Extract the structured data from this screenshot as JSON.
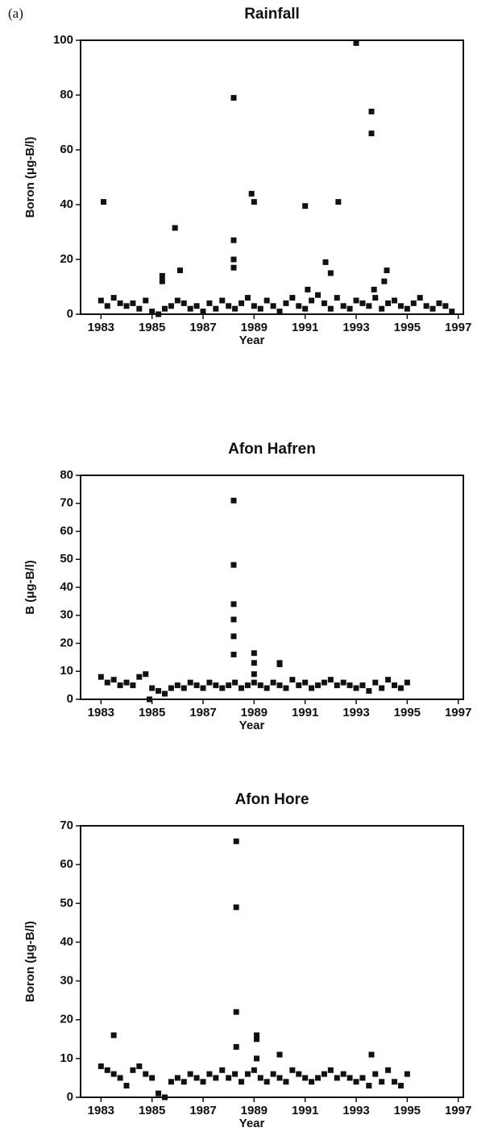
{
  "panel_label": "(a)",
  "chart_data": [
    {
      "type": "scatter",
      "title": "Rainfall",
      "x_label": "Year",
      "y_label": "Boron (μg-B/l)",
      "color": "#111111",
      "xlim": [
        1982.2,
        1997.2
      ],
      "xticks": [
        1983,
        1985,
        1987,
        1989,
        1991,
        1993,
        1995,
        1997
      ],
      "ylim": [
        0,
        100
      ],
      "yticks": [
        0,
        20,
        40,
        60,
        80,
        100
      ],
      "x": [
        1983,
        1983.25,
        1983.5,
        1983.75,
        1984,
        1984.25,
        1984.5,
        1984.75,
        1985,
        1985.25,
        1985.5,
        1985.75,
        1986,
        1986.25,
        1986.5,
        1986.75,
        1987,
        1987.25,
        1987.5,
        1987.75,
        1988,
        1988.25,
        1988.5,
        1988.75,
        1989,
        1989.25,
        1989.5,
        1989.75,
        1990,
        1990.25,
        1990.5,
        1990.75,
        1991,
        1991.25,
        1991.5,
        1991.75,
        1992,
        1992.25,
        1992.5,
        1992.75,
        1993,
        1993.25,
        1993.5,
        1993.75,
        1994,
        1994.25,
        1994.5,
        1994.75,
        1995,
        1995.25,
        1995.5,
        1995.75,
        1996,
        1996.25,
        1996.5,
        1996.75,
        1983.1,
        1985.4,
        1985.4,
        1985.9,
        1986.1,
        1988.2,
        1988.2,
        1988.2,
        1988.2,
        1988.9,
        1989,
        1991,
        1991.1,
        1991.8,
        1992,
        1992.3,
        1993,
        1993.6,
        1993.6,
        1993.7,
        1994.1,
        1994.2
      ],
      "y": [
        5,
        3,
        6,
        4,
        3,
        4,
        2,
        5,
        1,
        0,
        2,
        3,
        5,
        4,
        2,
        3,
        1,
        4,
        2,
        5,
        3,
        2,
        4,
        6,
        3,
        2,
        5,
        3,
        1,
        4,
        6,
        3,
        2,
        5,
        7,
        4,
        2,
        6,
        3,
        2,
        5,
        4,
        3,
        6,
        2,
        4,
        5,
        3,
        2,
        4,
        6,
        3,
        2,
        4,
        3,
        1,
        41,
        14,
        12,
        31.5,
        16,
        79,
        27,
        20,
        17,
        44,
        41,
        39.5,
        9,
        19,
        15,
        41,
        99,
        74,
        66,
        9,
        12,
        16
      ]
    },
    {
      "type": "scatter",
      "title": "Afon Hafren",
      "x_label": "Year",
      "y_label": "B (μg-B/l)",
      "color": "#111111",
      "xlim": [
        1982.2,
        1997.2
      ],
      "xticks": [
        1983,
        1985,
        1987,
        1989,
        1991,
        1993,
        1995,
        1997
      ],
      "ylim": [
        0,
        80
      ],
      "yticks": [
        0,
        10,
        20,
        30,
        40,
        50,
        60,
        70,
        80
      ],
      "x": [
        1983,
        1983.25,
        1983.5,
        1983.75,
        1984,
        1984.25,
        1984.5,
        1984.75,
        1985,
        1985.25,
        1985.5,
        1985.75,
        1986,
        1986.25,
        1986.5,
        1986.75,
        1987,
        1987.25,
        1987.5,
        1987.75,
        1988,
        1988.25,
        1988.5,
        1988.75,
        1989,
        1989.25,
        1989.5,
        1989.75,
        1990,
        1990.25,
        1990.5,
        1990.75,
        1991,
        1991.25,
        1991.5,
        1991.75,
        1992,
        1992.25,
        1992.5,
        1992.75,
        1993,
        1993.25,
        1993.5,
        1993.75,
        1994,
        1994.25,
        1994.5,
        1994.75,
        1995,
        1988.2,
        1988.2,
        1988.2,
        1988.2,
        1988.2,
        1988.2,
        1989,
        1989,
        1989,
        1990,
        1990,
        1984.9
      ],
      "y": [
        8,
        6,
        7,
        5,
        6,
        5,
        8,
        9,
        4,
        3,
        2,
        4,
        5,
        4,
        6,
        5,
        4,
        6,
        5,
        4,
        5,
        6,
        4,
        5,
        6,
        5,
        4,
        6,
        5,
        4,
        7,
        5,
        6,
        4,
        5,
        6,
        7,
        5,
        6,
        5,
        4,
        5,
        3,
        6,
        4,
        7,
        5,
        4,
        6,
        71,
        48,
        34,
        28.5,
        22.5,
        16,
        16.5,
        13,
        9,
        13,
        12.5,
        0
      ]
    },
    {
      "type": "scatter",
      "title": "Afon Hore",
      "x_label": "Year",
      "y_label": "Boron (μg-B/l)",
      "color": "#111111",
      "xlim": [
        1982.2,
        1997.2
      ],
      "xticks": [
        1983,
        1985,
        1987,
        1989,
        1991,
        1993,
        1995,
        1997
      ],
      "ylim": [
        0,
        70
      ],
      "yticks": [
        0,
        10,
        20,
        30,
        40,
        50,
        60,
        70
      ],
      "x": [
        1983,
        1983.25,
        1983.5,
        1983.75,
        1984,
        1984.25,
        1984.5,
        1984.75,
        1985,
        1985.25,
        1985.5,
        1985.75,
        1986,
        1986.25,
        1986.5,
        1986.75,
        1987,
        1987.25,
        1987.5,
        1987.75,
        1988,
        1988.25,
        1988.5,
        1988.75,
        1989,
        1989.25,
        1989.5,
        1989.75,
        1990,
        1990.25,
        1990.5,
        1990.75,
        1991,
        1991.25,
        1991.5,
        1991.75,
        1992,
        1992.25,
        1992.5,
        1992.75,
        1993,
        1993.25,
        1993.5,
        1993.75,
        1994,
        1994.25,
        1994.5,
        1994.75,
        1995,
        1983.5,
        1988.3,
        1988.3,
        1988.3,
        1988.3,
        1989.1,
        1989.1,
        1989.1,
        1990,
        1993.6
      ],
      "y": [
        8,
        7,
        6,
        5,
        3,
        7,
        8,
        6,
        5,
        1,
        0,
        4,
        5,
        4,
        6,
        5,
        4,
        6,
        5,
        7,
        5,
        6,
        4,
        6,
        7,
        5,
        4,
        6,
        5,
        4,
        7,
        6,
        5,
        4,
        5,
        6,
        7,
        5,
        6,
        5,
        4,
        5,
        3,
        6,
        4,
        7,
        4,
        3,
        6,
        16,
        66,
        49,
        22,
        13,
        16,
        15,
        10,
        11,
        11
      ]
    }
  ]
}
